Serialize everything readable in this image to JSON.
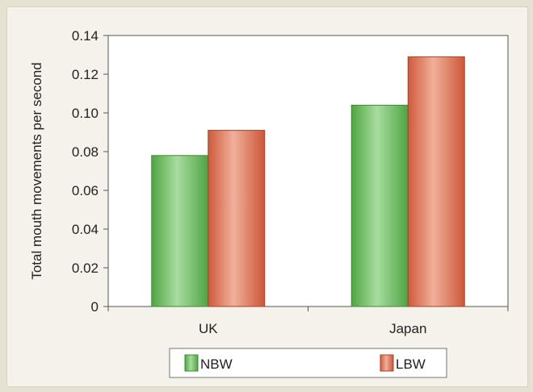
{
  "chart_data": {
    "type": "bar",
    "categories": [
      "UK",
      "Japan"
    ],
    "series": [
      {
        "name": "NBW",
        "values": [
          0.078,
          0.104
        ]
      },
      {
        "name": "LBW",
        "values": [
          0.091,
          0.129
        ]
      }
    ],
    "ylabel": "Total mouth movements per second",
    "ylim": [
      0,
      0.14
    ],
    "yticks": [
      "0",
      "0.02",
      "0.04",
      "0.06",
      "0.08",
      "0.10",
      "0.12",
      "0.14"
    ],
    "grid": false,
    "legend_position": "bottom"
  },
  "colors": {
    "NBW": "#6cbf5a",
    "LBW": "#dd6a4c"
  }
}
